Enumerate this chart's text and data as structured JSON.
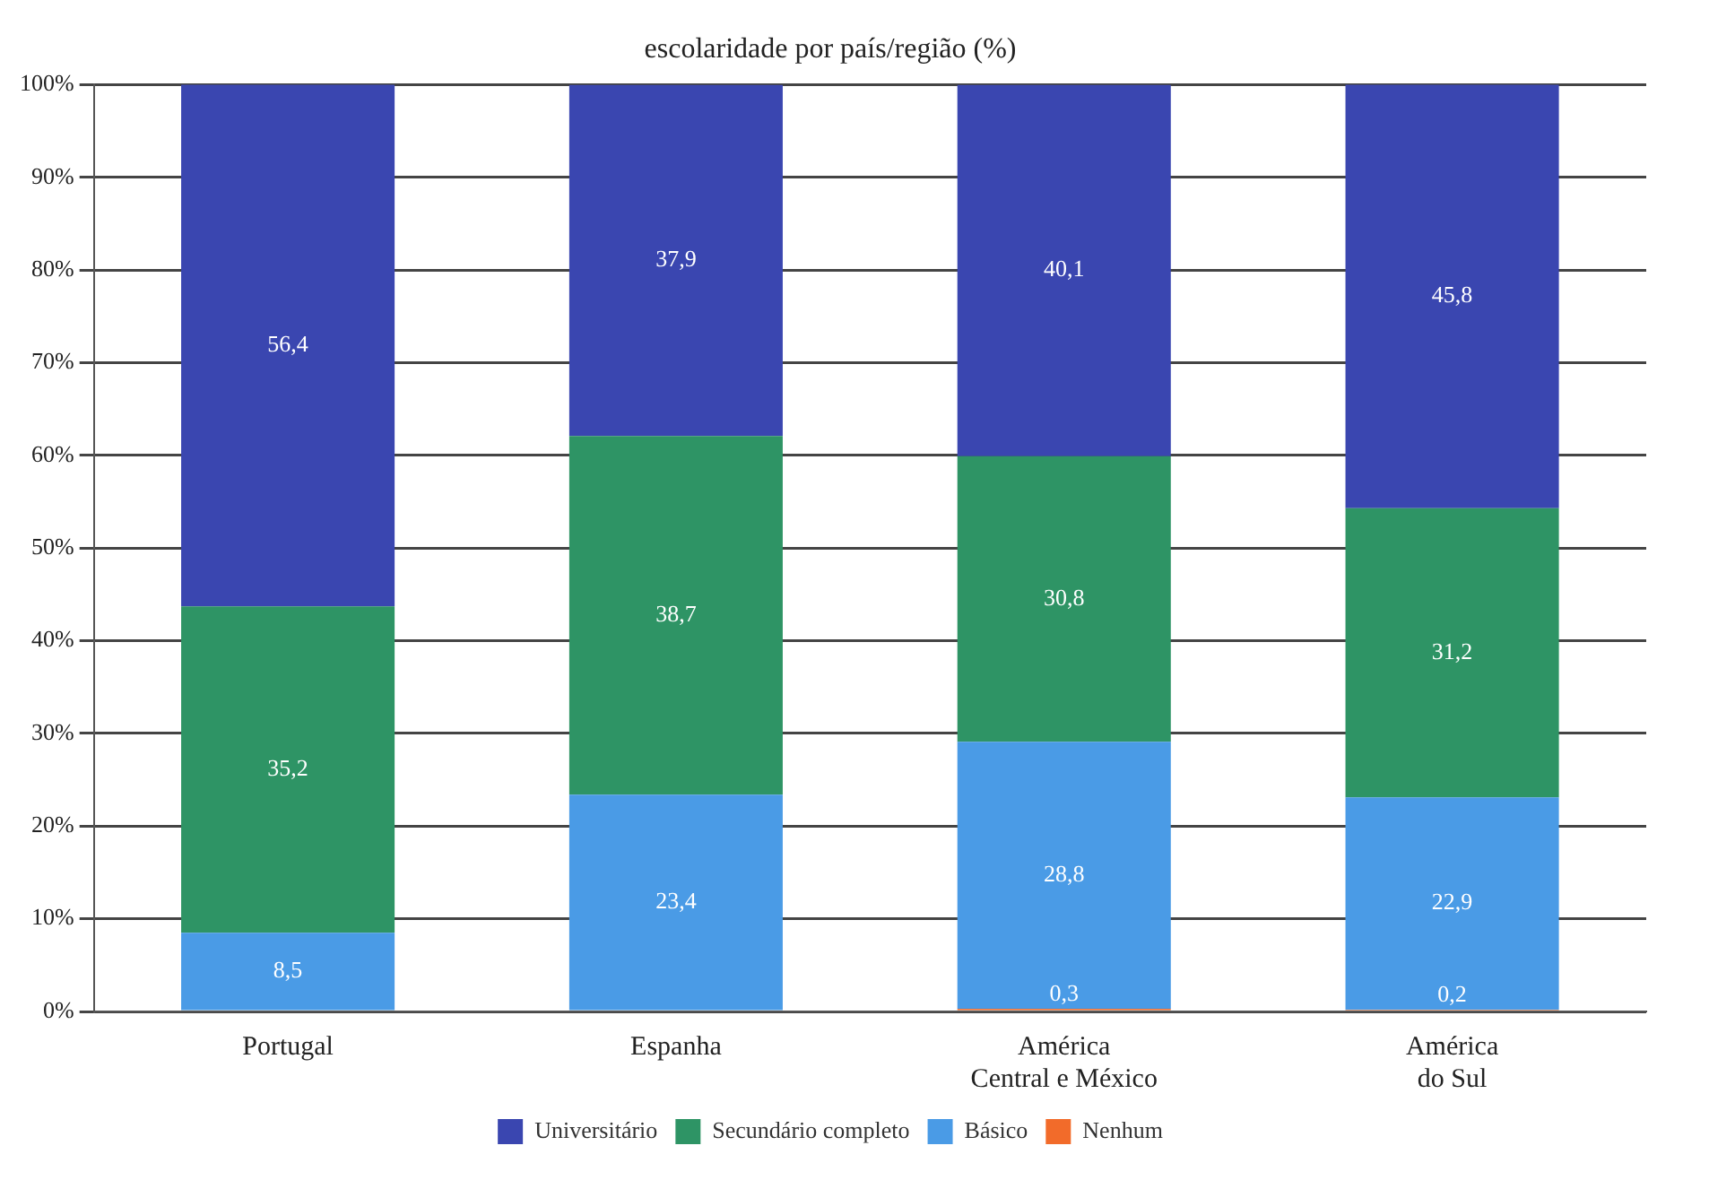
{
  "chart_data": {
    "type": "bar",
    "stacked": true,
    "title": "escolaridade por país/região (%)",
    "categories": [
      "Portugal",
      "Espanha",
      "América\nCentral e México",
      "América\ndo Sul"
    ],
    "series": [
      {
        "name": "Nenhum",
        "color": "#f26b2a",
        "values": [
          null,
          null,
          0.3,
          0.2
        ],
        "value_labels": [
          null,
          null,
          "0,3",
          "0,2"
        ]
      },
      {
        "name": "Básico",
        "color": "#4a9be6",
        "values": [
          8.5,
          23.4,
          28.8,
          22.9
        ],
        "value_labels": [
          "8,5",
          "23,4",
          "28,8",
          "22,9"
        ]
      },
      {
        "name": "Secundário completo",
        "color": "#2e9465",
        "values": [
          35.2,
          38.7,
          30.8,
          31.2
        ],
        "value_labels": [
          "35,2",
          "38,7",
          "30,8",
          "31,2"
        ]
      },
      {
        "name": "Universitário",
        "color": "#3a46b0",
        "values": [
          56.4,
          37.9,
          40.1,
          45.8
        ],
        "value_labels": [
          "56,4",
          "37,9",
          "40,1",
          "45,8"
        ]
      }
    ],
    "ylim": [
      0,
      100
    ],
    "yticks": [
      {
        "value": 0,
        "label": "0%"
      },
      {
        "value": 10,
        "label": "10%"
      },
      {
        "value": 20,
        "label": "20%"
      },
      {
        "value": 30,
        "label": "30%"
      },
      {
        "value": 40,
        "label": "40%"
      },
      {
        "value": 50,
        "label": "50%"
      },
      {
        "value": 60,
        "label": "60%"
      },
      {
        "value": 70,
        "label": "70%"
      },
      {
        "value": 80,
        "label": "80%"
      },
      {
        "value": 90,
        "label": "90%"
      },
      {
        "value": 100,
        "label": "100%"
      }
    ],
    "grid": "y",
    "legend": "bottom"
  }
}
